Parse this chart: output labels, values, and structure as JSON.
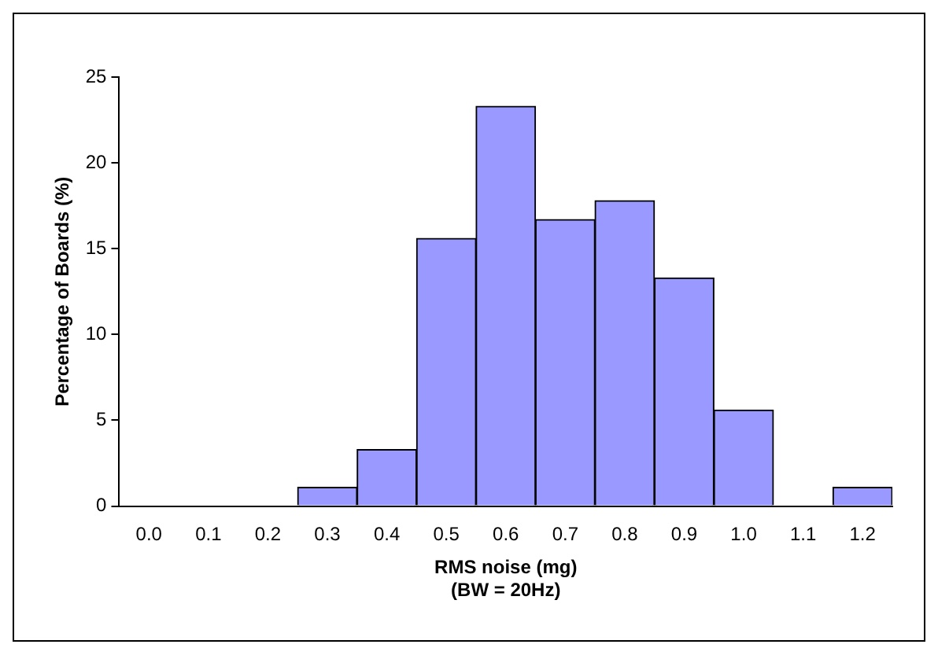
{
  "chart_data": {
    "type": "bar",
    "xlabel": "RMS noise (mg)\n(BW = 20Hz)",
    "ylabel": "Percentage of Boards (%)",
    "categories": [
      "0.0",
      "0.1",
      "0.2",
      "0.3",
      "0.4",
      "0.5",
      "0.6",
      "0.7",
      "0.8",
      "0.9",
      "1.0",
      "1.1",
      "1.2"
    ],
    "values": [
      0,
      0,
      0,
      1.1,
      3.3,
      15.6,
      23.3,
      16.7,
      17.8,
      13.3,
      5.6,
      0,
      1.1
    ],
    "color": "#9999ff",
    "ylim": [
      0,
      25
    ],
    "yticks": [
      0,
      5,
      10,
      15,
      20,
      25
    ],
    "grid": false
  }
}
